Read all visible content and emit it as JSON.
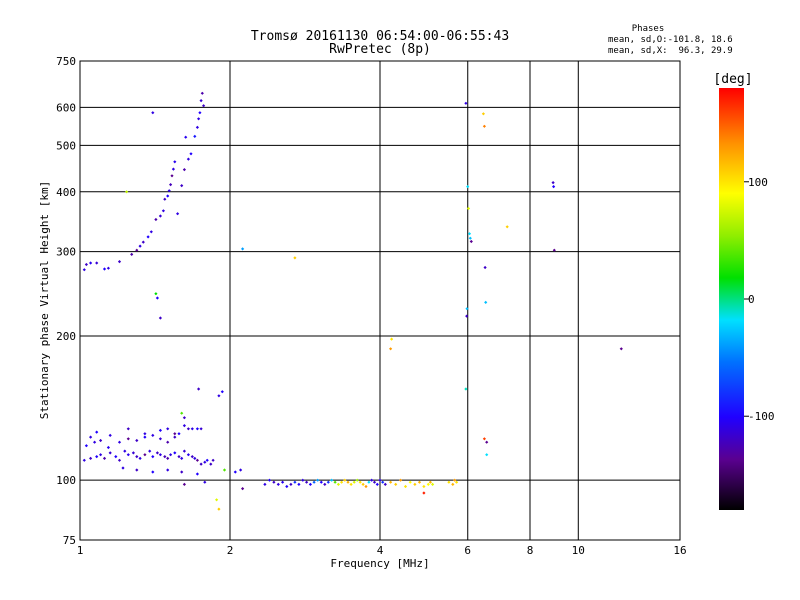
{
  "chart_data": {
    "type": "scatter",
    "title": "Tromsø 20161130 06:54:00-06:55:43",
    "subtitle": "RwPretec (8p)",
    "phases_label": "Phases",
    "phases_line1": "mean, sd,O:-101.8, 18.6",
    "phases_line2": "mean, sd,X:  96.3, 29.9",
    "xlabel": "Frequency [MHz]",
    "ylabel": "Stationary phase Virtual Height [km]",
    "xscale": "log",
    "yscale": "log",
    "xlim": [
      1,
      16
    ],
    "ylim": [
      75,
      750
    ],
    "xticks": [
      1,
      2,
      4,
      6,
      8,
      10,
      16
    ],
    "yticks": [
      75,
      100,
      200,
      300,
      400,
      500,
      600,
      750
    ],
    "grid_x": [
      2,
      4,
      6,
      8,
      10
    ],
    "grid_y": [
      100,
      200,
      300,
      400,
      500,
      600
    ],
    "colorbar": {
      "label": "[deg]",
      "range": [
        -180,
        180
      ],
      "ticks": [
        -100,
        0,
        100
      ]
    },
    "colors": {
      "black": "#000000",
      "purple": "#7a00b0",
      "blue": "#0020ff",
      "cyan": "#00ccff",
      "green": "#00d000",
      "yellow": "#e8e800",
      "orange": "#ff9000",
      "red": "#ff0000"
    },
    "points": [
      [
        1.02,
        275,
        -110
      ],
      [
        1.03,
        282,
        -120
      ],
      [
        1.05,
        284,
        -105
      ],
      [
        1.08,
        284,
        -115
      ],
      [
        1.12,
        276,
        -100
      ],
      [
        1.14,
        277,
        -110
      ],
      [
        1.2,
        286,
        -120
      ],
      [
        1.27,
        296,
        -130
      ],
      [
        1.3,
        302,
        -140
      ],
      [
        1.32,
        308,
        -110
      ],
      [
        1.34,
        314,
        -120
      ],
      [
        1.37,
        322,
        -100
      ],
      [
        1.39,
        330,
        -110
      ],
      [
        1.42,
        350,
        -130
      ],
      [
        1.45,
        356,
        -115
      ],
      [
        1.47,
        365,
        -110
      ],
      [
        1.48,
        386,
        -120
      ],
      [
        1.5,
        392,
        -100
      ],
      [
        1.51,
        402,
        -110
      ],
      [
        1.52,
        414,
        -125
      ],
      [
        1.53,
        432,
        -140
      ],
      [
        1.54,
        446,
        -110
      ],
      [
        1.55,
        462,
        -105
      ],
      [
        1.57,
        360,
        -110
      ],
      [
        1.6,
        412,
        -120
      ],
      [
        1.62,
        445,
        -130
      ],
      [
        1.65,
        468,
        -110
      ],
      [
        1.67,
        480,
        -100
      ],
      [
        1.63,
        520,
        -105
      ],
      [
        1.7,
        522,
        -90
      ],
      [
        1.72,
        545,
        -110
      ],
      [
        1.74,
        585,
        -100
      ],
      [
        1.75,
        620,
        -115
      ],
      [
        1.76,
        642,
        -130
      ],
      [
        1.77,
        605,
        -120
      ],
      [
        1.73,
        568,
        -110
      ],
      [
        1.4,
        585,
        -110
      ],
      [
        1.24,
        400,
        70
      ],
      [
        1.42,
        245,
        20
      ],
      [
        1.43,
        240,
        -100
      ],
      [
        1.45,
        218,
        -120
      ],
      [
        2.12,
        304,
        -40
      ],
      [
        2.7,
        291,
        110
      ],
      [
        4.2,
        188,
        130
      ],
      [
        4.22,
        197,
        100
      ],
      [
        5.95,
        612,
        -110
      ],
      [
        6.0,
        410,
        -20
      ],
      [
        6.02,
        369,
        80
      ],
      [
        6.05,
        327,
        -20
      ],
      [
        6.07,
        320,
        -30
      ],
      [
        6.1,
        315,
        -140
      ],
      [
        5.98,
        228,
        -30
      ],
      [
        5.97,
        220,
        -120
      ],
      [
        5.95,
        155,
        -10
      ],
      [
        6.45,
        582,
        110
      ],
      [
        6.48,
        548,
        140
      ],
      [
        6.5,
        278,
        -120
      ],
      [
        6.52,
        235,
        -30
      ],
      [
        6.48,
        122,
        160
      ],
      [
        6.55,
        120,
        -140
      ],
      [
        6.55,
        113,
        -20
      ],
      [
        7.2,
        338,
        110
      ],
      [
        8.9,
        418,
        -120
      ],
      [
        8.92,
        410,
        -100
      ],
      [
        8.95,
        302,
        -140
      ],
      [
        12.2,
        188,
        -140
      ],
      [
        1.02,
        110,
        -110
      ],
      [
        1.05,
        111,
        -120
      ],
      [
        1.08,
        112,
        -100
      ],
      [
        1.1,
        113,
        -110
      ],
      [
        1.12,
        111,
        -130
      ],
      [
        1.15,
        114,
        -115
      ],
      [
        1.18,
        112,
        -100
      ],
      [
        1.2,
        110,
        -120
      ],
      [
        1.23,
        115,
        -110
      ],
      [
        1.25,
        113,
        -105
      ],
      [
        1.28,
        114,
        -115
      ],
      [
        1.3,
        112,
        -120
      ],
      [
        1.32,
        111,
        -110
      ],
      [
        1.35,
        113,
        -140
      ],
      [
        1.38,
        115,
        -110
      ],
      [
        1.4,
        112,
        -100
      ],
      [
        1.43,
        114,
        -120
      ],
      [
        1.45,
        113,
        -110
      ],
      [
        1.48,
        112,
        -125
      ],
      [
        1.5,
        111,
        -130
      ],
      [
        1.52,
        113,
        -110
      ],
      [
        1.55,
        114,
        -100
      ],
      [
        1.58,
        112,
        -120
      ],
      [
        1.6,
        111,
        -110
      ],
      [
        1.62,
        115,
        -115
      ],
      [
        1.65,
        113,
        -105
      ],
      [
        1.68,
        112,
        -120
      ],
      [
        1.7,
        111,
        -110
      ],
      [
        1.72,
        110,
        -140
      ],
      [
        1.75,
        108,
        -120
      ],
      [
        1.78,
        109,
        -110
      ],
      [
        1.8,
        110,
        -100
      ],
      [
        1.83,
        108,
        -120
      ],
      [
        1.03,
        118,
        -100
      ],
      [
        1.07,
        120,
        -110
      ],
      [
        1.1,
        121,
        -120
      ],
      [
        1.14,
        117,
        -105
      ],
      [
        1.2,
        120,
        -110
      ],
      [
        1.25,
        122,
        -140
      ],
      [
        1.3,
        121,
        -120
      ],
      [
        1.35,
        123,
        -100
      ],
      [
        1.4,
        124,
        -110
      ],
      [
        1.45,
        122,
        -115
      ],
      [
        1.5,
        120,
        -130
      ],
      [
        1.55,
        123,
        -120
      ],
      [
        1.58,
        125,
        -100
      ],
      [
        1.62,
        130,
        -110
      ],
      [
        1.65,
        128,
        -120
      ],
      [
        1.68,
        128,
        -110
      ],
      [
        1.72,
        128,
        -100
      ],
      [
        1.75,
        128,
        -115
      ],
      [
        1.62,
        135,
        -120
      ],
      [
        1.6,
        138,
        40
      ],
      [
        1.55,
        125,
        -140
      ],
      [
        1.5,
        128,
        -110
      ],
      [
        1.45,
        127,
        -100
      ],
      [
        1.35,
        125,
        -110
      ],
      [
        1.25,
        128,
        -120
      ],
      [
        1.15,
        124,
        -110
      ],
      [
        1.08,
        126,
        -100
      ],
      [
        1.05,
        123,
        -110
      ],
      [
        1.22,
        106,
        -110
      ],
      [
        1.3,
        105,
        -120
      ],
      [
        1.4,
        104,
        -100
      ],
      [
        1.5,
        105,
        -110
      ],
      [
        1.6,
        104,
        -120
      ],
      [
        1.72,
        103,
        -100
      ],
      [
        1.78,
        99,
        -110
      ],
      [
        1.62,
        98,
        -140
      ],
      [
        1.73,
        155,
        -120
      ],
      [
        1.9,
        150,
        -110
      ],
      [
        1.93,
        153,
        -100
      ],
      [
        1.85,
        110,
        -120
      ],
      [
        1.95,
        105,
        40
      ],
      [
        1.88,
        91,
        80
      ],
      [
        1.9,
        87,
        110
      ],
      [
        2.05,
        104,
        -100
      ],
      [
        2.1,
        105,
        -110
      ],
      [
        2.12,
        96,
        -140
      ],
      [
        2.35,
        98,
        -110
      ],
      [
        2.4,
        100,
        -100
      ],
      [
        2.45,
        99,
        -120
      ],
      [
        2.5,
        98,
        -110
      ],
      [
        2.55,
        99,
        -105
      ],
      [
        2.6,
        97,
        -100
      ],
      [
        2.65,
        98,
        -120
      ],
      [
        2.7,
        99,
        -80
      ],
      [
        2.75,
        98,
        -100
      ],
      [
        2.8,
        100,
        -110
      ],
      [
        2.85,
        99,
        -120
      ],
      [
        2.9,
        98,
        -100
      ],
      [
        2.95,
        99,
        -60
      ],
      [
        3.0,
        100,
        -40
      ],
      [
        3.05,
        99,
        -100
      ],
      [
        3.1,
        98,
        -120
      ],
      [
        3.15,
        99,
        -80
      ],
      [
        3.2,
        100,
        -30
      ],
      [
        3.25,
        99,
        40
      ],
      [
        3.3,
        98,
        80
      ],
      [
        3.35,
        99,
        100
      ],
      [
        3.4,
        100,
        110
      ],
      [
        3.45,
        99,
        120
      ],
      [
        3.5,
        98,
        100
      ],
      [
        3.55,
        99,
        80
      ],
      [
        3.6,
        100,
        60
      ],
      [
        3.65,
        99,
        100
      ],
      [
        3.7,
        98,
        110
      ],
      [
        3.75,
        97,
        130
      ],
      [
        3.8,
        99,
        -20
      ],
      [
        3.85,
        100,
        -110
      ],
      [
        3.9,
        99,
        -120
      ],
      [
        3.95,
        98,
        -100
      ],
      [
        4.0,
        100,
        -110
      ],
      [
        4.05,
        99,
        -80
      ],
      [
        4.1,
        98,
        -120
      ],
      [
        4.2,
        99,
        120
      ],
      [
        4.3,
        98,
        110
      ],
      [
        4.4,
        100,
        130
      ],
      [
        4.5,
        97,
        100
      ],
      [
        4.6,
        99,
        90
      ],
      [
        4.7,
        98,
        110
      ],
      [
        4.8,
        99,
        120
      ],
      [
        4.9,
        97,
        100
      ],
      [
        5.0,
        98,
        90
      ],
      [
        5.05,
        99,
        120
      ],
      [
        5.1,
        98,
        80
      ],
      [
        4.9,
        94,
        170
      ],
      [
        5.5,
        99,
        100
      ],
      [
        5.6,
        98,
        120
      ],
      [
        5.65,
        100,
        130
      ],
      [
        5.7,
        99,
        100
      ]
    ]
  }
}
